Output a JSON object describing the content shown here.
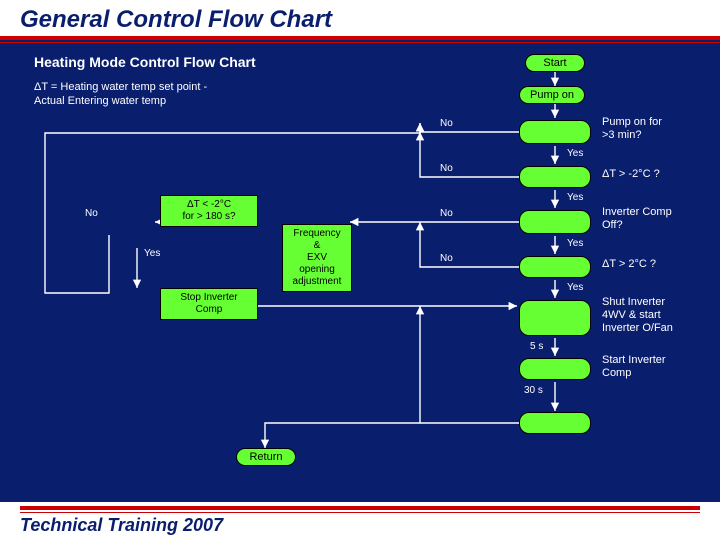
{
  "title": "General Control Flow Chart",
  "subtitle": "Heating Mode Control Flow Chart",
  "note_line1": "ΔT = Heating water temp set point -",
  "note_line2": "Actual Entering water temp",
  "footer": "Technical Training 2007",
  "colors": {
    "background": "#0a1e6e",
    "node_fill": "#66ff33",
    "accent": "#cc0000",
    "text_light": "#ffffff"
  },
  "nodes": {
    "start": "Start",
    "pump_on": "Pump on",
    "pump_3min": "Pump on for\n>3 min?",
    "dt_m2": "ΔT > -2°C ?",
    "inv_off": "Inverter Comp\nOff?",
    "dt_p2": "ΔT > 2°C ?",
    "shut_inv": "Shut Inverter\n4WV & start\nInverter O/Fan",
    "start_inv": "Start Inverter\nComp",
    "dt_180": "ΔT < -2°C\nfor > 180 s?",
    "freq_adj": "Frequency &\nEXV opening\nadjustment",
    "stop_inv": "Stop Inverter\nComp",
    "ret": "Return",
    "delay5": "5 s",
    "delay30": "30 s"
  },
  "edges": {
    "no": "No",
    "yes": "Yes"
  }
}
